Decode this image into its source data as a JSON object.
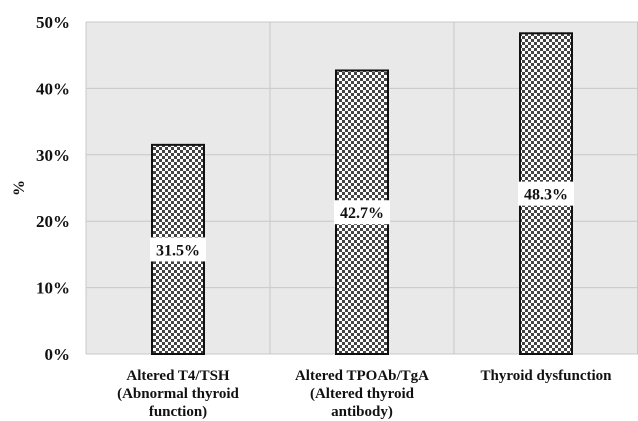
{
  "chart_data": {
    "type": "bar",
    "categories": [
      [
        "Altered T4/TSH",
        "(Abnormal thyroid",
        "function)"
      ],
      [
        "Altered TPOAb/TgA",
        "(Altered thyroid",
        "antibody)"
      ],
      [
        "Thyroid dysfunction"
      ]
    ],
    "values": [
      31.5,
      42.7,
      48.3
    ],
    "data_labels": [
      "31.5%",
      "42.7%",
      "48.3%"
    ],
    "ylabel": "%",
    "ylim": [
      0,
      50
    ],
    "yticks": [
      0,
      10,
      20,
      30,
      40,
      50
    ],
    "ytick_labels": [
      "0%",
      "10%",
      "20%",
      "30%",
      "40%",
      "50%"
    ],
    "grid": true,
    "colors": {
      "background": "#e9e9e9",
      "grid": "#c8c8c8",
      "bar_dark": "#444444",
      "bar_light": "#ffffff",
      "bar_border": "#111111"
    }
  }
}
